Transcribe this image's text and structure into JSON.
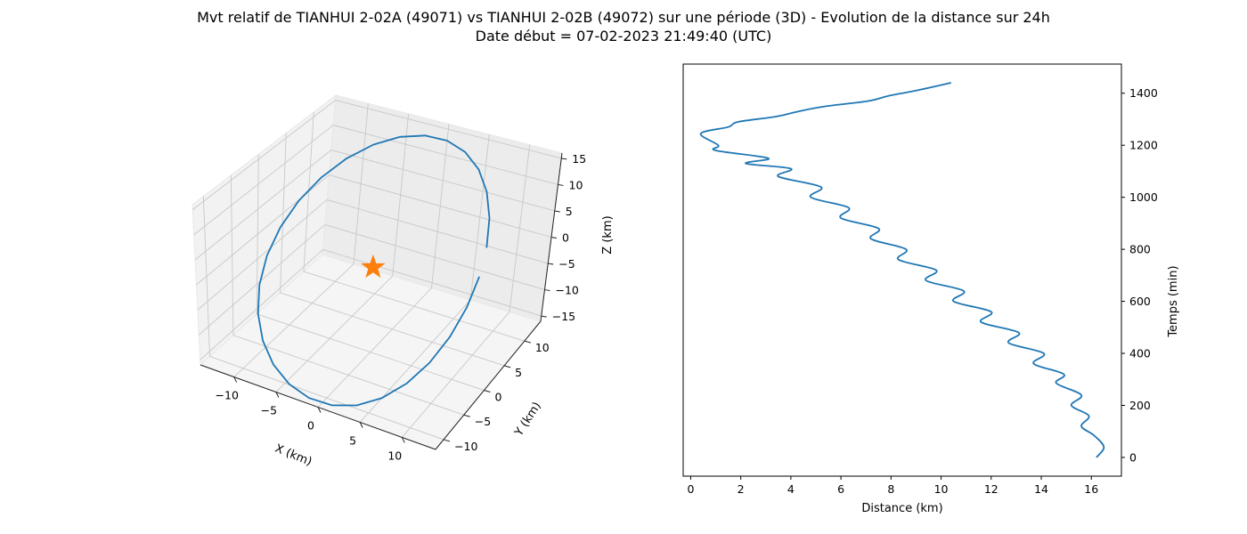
{
  "title": {
    "line1": "Mvt relatif de TIANHUI 2-02A (49071) vs TIANHUI 2-02B (49072) sur une période (3D) - Evolution de la distance sur 24h",
    "line2": "Date début = 07-02-2023 21:49:40 (UTC)"
  },
  "colors": {
    "series": "#1f77b4",
    "star": "#ff7f0e",
    "pane": "#f2f2f2",
    "grid": "#cccccc"
  },
  "chart_data": [
    {
      "type": "line3d",
      "xlabel": "X (km)",
      "ylabel": "Y (km)",
      "zlabel": "Z (km)",
      "xlim": [
        -14,
        14
      ],
      "ylim": [
        -12,
        14
      ],
      "zlim": [
        -16,
        16
      ],
      "xticks": [
        -10,
        -5,
        0,
        5,
        10
      ],
      "yticks": [
        -10,
        -5,
        0,
        5,
        10
      ],
      "zticks": [
        -15,
        -10,
        -5,
        0,
        5,
        10,
        15
      ],
      "xtick_labels": [
        "−10",
        "−5",
        "0",
        "5",
        "10"
      ],
      "ytick_labels": [
        "−10",
        "−5",
        "0",
        "5",
        "10"
      ],
      "ztick_labels": [
        "−15",
        "−10",
        "−5",
        "0",
        "5",
        "10",
        "15"
      ],
      "grid": true,
      "marker": {
        "symbol": "star",
        "x": 0,
        "y": 0,
        "z": 0
      },
      "path": {
        "amplitude_xy": 12,
        "amplitude_z": 15,
        "start_angle_deg": 20,
        "end_angle_deg": 368,
        "points": 28
      }
    },
    {
      "type": "line",
      "xlabel": "Distance (km)",
      "ylabel": "Temps (min)",
      "xlim": [
        -0.3,
        17.2
      ],
      "ylim": [
        -72,
        1512
      ],
      "xticks": [
        0,
        2,
        4,
        6,
        8,
        10,
        12,
        14,
        16
      ],
      "yticks": [
        0,
        200,
        400,
        600,
        800,
        1000,
        1200,
        1400
      ],
      "grid": false,
      "series": [
        {
          "distance_km": [
            16.2,
            16.5,
            16.1,
            15.6,
            15.9,
            15.2,
            15.6,
            14.6,
            14.9,
            13.7,
            14.1,
            12.7,
            13.1,
            11.6,
            12.0,
            10.5,
            10.9,
            9.4,
            9.8,
            8.3,
            8.6,
            7.2,
            7.5,
            6.0,
            6.3,
            4.8,
            5.2,
            3.5,
            4.0,
            2.2,
            3.1,
            1.0,
            1.1,
            0.4,
            1.5,
            1.9,
            3.4,
            4.3,
            5.4,
            7.1,
            7.9,
            9.0,
            10.4
          ],
          "time_min": [
            0,
            40,
            85,
            120,
            160,
            200,
            240,
            285,
            320,
            360,
            400,
            440,
            480,
            520,
            560,
            600,
            640,
            680,
            720,
            760,
            800,
            840,
            880,
            920,
            960,
            1000,
            1040,
            1080,
            1110,
            1130,
            1150,
            1180,
            1200,
            1245,
            1270,
            1290,
            1310,
            1330,
            1350,
            1370,
            1390,
            1410,
            1440
          ]
        }
      ]
    }
  ]
}
